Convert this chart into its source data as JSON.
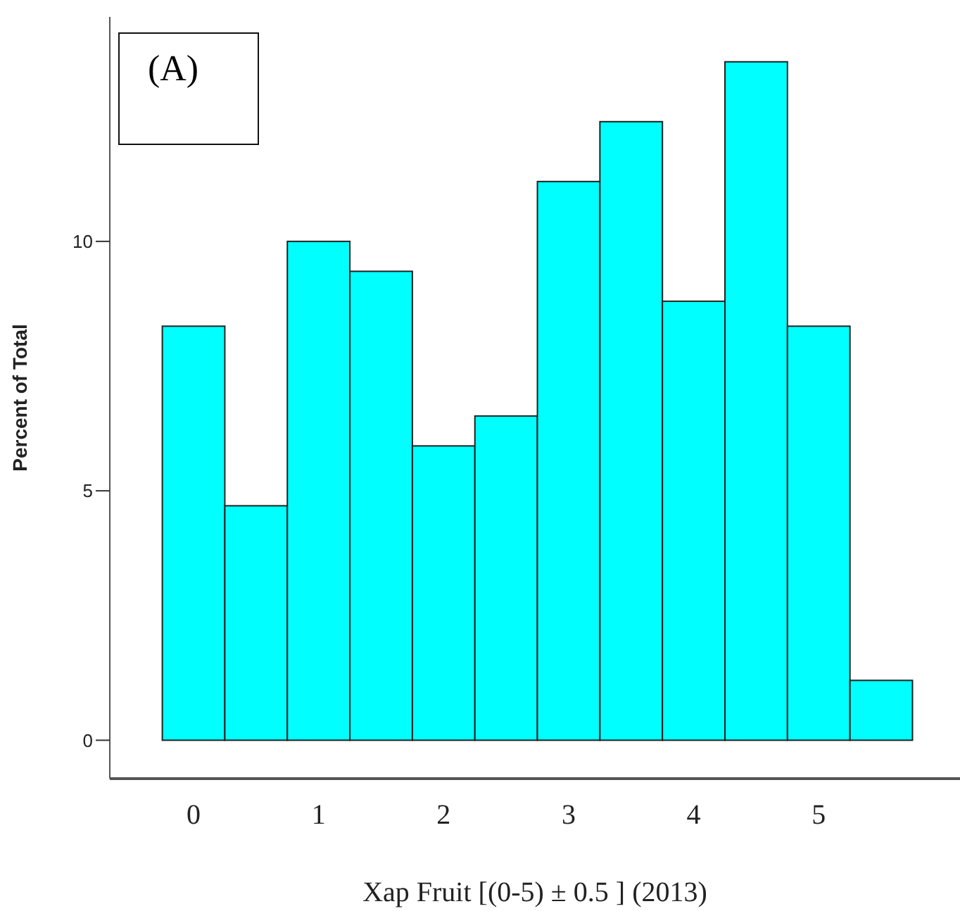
{
  "chart_data": {
    "type": "histogram",
    "xlabel": "Xap Fruit [(0-5) ± 0.5 ] (2013)",
    "ylabel": "Percent of Total",
    "annotations": [
      "(A)"
    ],
    "bins": [
      -0.25,
      0.25,
      0.75,
      1.25,
      1.75,
      2.25,
      2.75,
      3.25,
      3.75,
      4.25,
      4.75,
      5.25,
      5.75
    ],
    "values": [
      8.3,
      4.7,
      10.0,
      9.4,
      5.9,
      6.5,
      11.2,
      12.4,
      8.8,
      13.6,
      8.3,
      1.2
    ],
    "color": "#00ffff",
    "xlim": [
      -0.67,
      6.13
    ],
    "ylim": [
      -0.77,
      14.5
    ],
    "xticks": [
      0,
      1,
      2,
      3,
      4,
      5
    ],
    "yticks": [
      0,
      5,
      10
    ],
    "grid": false,
    "legend": false
  }
}
